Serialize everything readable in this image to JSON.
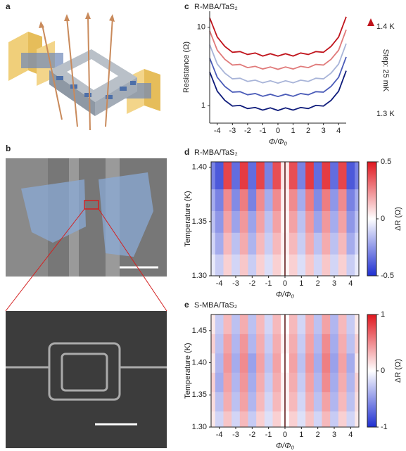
{
  "figure": {
    "panel_a": "a",
    "panel_b": "b"
  },
  "chart_data": [
    {
      "type": "line",
      "panel": "c",
      "title": "R-MBA/TaS₂",
      "xlabel": "Φ/Φ₀",
      "ylabel": "Resistance (Ω)",
      "log_y": true,
      "xlim": [
        -4.5,
        4.5
      ],
      "ylim": [
        0.6,
        16
      ],
      "xticks": [
        -4,
        -3,
        -2,
        -1,
        0,
        1,
        2,
        3,
        4
      ],
      "yticks": [
        1,
        10
      ],
      "annotations": [
        "1.4 K",
        "Step: 25 mK",
        "1.3 K"
      ],
      "x": [
        -4.5,
        -4,
        -3.5,
        -3,
        -2.5,
        -2,
        -1.5,
        -1,
        -0.5,
        0,
        0.5,
        1,
        1.5,
        2,
        2.5,
        3,
        3.5,
        4,
        4.5
      ],
      "series": [
        {
          "color": "#0d1a7a",
          "values": [
            2.7,
            1.53,
            1.17,
            0.99,
            1.01,
            0.92,
            0.95,
            0.88,
            0.94,
            0.87,
            0.94,
            0.88,
            0.95,
            0.92,
            1.01,
            0.99,
            1.17,
            1.53,
            2.79
          ]
        },
        {
          "color": "#4a5bb8",
          "values": [
            4.05,
            2.3,
            1.76,
            1.49,
            1.51,
            1.38,
            1.43,
            1.32,
            1.4,
            1.31,
            1.4,
            1.32,
            1.43,
            1.38,
            1.51,
            1.49,
            1.76,
            2.3,
            4.19
          ]
        },
        {
          "color": "#a8b4d8",
          "values": [
            6.0,
            3.4,
            2.6,
            2.2,
            2.24,
            2.04,
            2.12,
            1.96,
            2.08,
            1.94,
            2.08,
            1.96,
            2.12,
            2.04,
            2.24,
            2.2,
            2.6,
            3.4,
            6.2
          ]
        },
        {
          "color": "#e07a7a",
          "values": [
            9.0,
            5.1,
            3.9,
            3.3,
            3.36,
            3.06,
            3.18,
            2.94,
            3.12,
            2.91,
            3.12,
            2.94,
            3.18,
            3.06,
            3.36,
            3.3,
            3.9,
            5.1,
            9.3
          ]
        },
        {
          "color": "#c0141c",
          "values": [
            13.2,
            7.5,
            5.7,
            4.8,
            4.9,
            4.5,
            4.7,
            4.3,
            4.6,
            4.3,
            4.6,
            4.3,
            4.7,
            4.5,
            4.9,
            4.8,
            5.7,
            7.5,
            13.6
          ]
        }
      ]
    },
    {
      "type": "heatmap",
      "panel": "d",
      "title": "R-MBA/TaS₂",
      "xlabel": "Φ/Φ₀",
      "ylabel": "Temperature (K)",
      "colorbar_label": "ΔR (Ω)",
      "xlim": [
        -4.5,
        4.5
      ],
      "ylim": [
        1.3,
        1.405
      ],
      "xticks": [
        -4,
        -3,
        -2,
        -1,
        0,
        1,
        2,
        3,
        4
      ],
      "yticks": [
        {
          "value": 1.3,
          "label": "1.30"
        },
        1.35,
        {
          "value": 1.4,
          "label": "1.40"
        }
      ],
      "clim": [
        -0.5,
        0.5
      ],
      "cticks": [
        -0.5,
        0,
        0.5
      ],
      "colorscale": [
        "#1f2fd1",
        "#ffffff",
        "#e0161e"
      ],
      "vline": 0,
      "x": [
        -4.5,
        -4,
        -3.5,
        -3,
        -2.5,
        -2,
        -1.5,
        -1,
        -0.5,
        0,
        0.5,
        1,
        1.5,
        2,
        2.5,
        3,
        3.5,
        4,
        4.5
      ],
      "y": [
        1.31,
        1.33,
        1.35,
        1.37,
        1.39
      ],
      "z": [
        [
          -0.05,
          -0.12,
          0.1,
          -0.1,
          0.12,
          -0.12,
          0.1,
          -0.08,
          0.1,
          0.02,
          0.1,
          -0.08,
          0.12,
          -0.1,
          0.12,
          -0.1,
          0.1,
          -0.12,
          -0.05
        ],
        [
          -0.1,
          -0.2,
          0.15,
          -0.15,
          0.18,
          -0.18,
          0.15,
          -0.12,
          0.15,
          0.03,
          0.15,
          -0.12,
          0.18,
          -0.15,
          0.18,
          -0.15,
          0.15,
          -0.2,
          -0.1
        ],
        [
          -0.15,
          -0.25,
          0.2,
          -0.22,
          0.22,
          -0.22,
          0.2,
          -0.15,
          0.2,
          0.02,
          0.2,
          -0.15,
          0.22,
          -0.22,
          0.22,
          -0.2,
          0.2,
          -0.25,
          -0.15
        ],
        [
          -0.2,
          -0.3,
          0.25,
          -0.28,
          0.28,
          -0.3,
          0.25,
          -0.2,
          0.25,
          0.03,
          0.25,
          -0.2,
          0.28,
          -0.28,
          0.28,
          -0.25,
          0.25,
          -0.3,
          -0.2
        ],
        [
          -0.3,
          -0.4,
          0.4,
          -0.35,
          0.42,
          -0.35,
          0.4,
          -0.3,
          0.38,
          0.05,
          0.38,
          -0.3,
          0.42,
          -0.35,
          0.42,
          -0.35,
          0.4,
          -0.4,
          -0.3
        ]
      ]
    },
    {
      "type": "heatmap",
      "panel": "e",
      "title": "S-MBA/TaS₂",
      "xlabel": "Φ/Φ₀",
      "ylabel": "Temperature (K)",
      "colorbar_label": "ΔR (Ω)",
      "xlim": [
        -4.5,
        4.5
      ],
      "ylim": [
        1.3,
        1.475
      ],
      "xticks": [
        -4,
        -3,
        -2,
        -1,
        0,
        1,
        2,
        3,
        4
      ],
      "yticks": [
        {
          "value": 1.3,
          "label": "1.30"
        },
        1.35,
        {
          "value": 1.4,
          "label": "1.40"
        },
        1.45
      ],
      "clim": [
        -1,
        1
      ],
      "cticks": [
        -1,
        0,
        1
      ],
      "colorscale": [
        "#1f2fd1",
        "#ffffff",
        "#e0161e"
      ],
      "vline": 0,
      "x": [
        -4.5,
        -4,
        -3.5,
        -3,
        -2.5,
        -2,
        -1.5,
        -1,
        -0.5,
        0,
        0.5,
        1,
        1.5,
        2,
        2.5,
        3,
        3.5,
        4,
        4.5
      ],
      "y": [
        1.31,
        1.34,
        1.37,
        1.4,
        1.43,
        1.46
      ],
      "z": [
        [
          0.1,
          -0.2,
          0.25,
          -0.2,
          0.3,
          -0.25,
          0.2,
          -0.15,
          0.2,
          0,
          0.2,
          -0.15,
          0.25,
          -0.2,
          0.3,
          -0.25,
          0.2,
          -0.2,
          0.1
        ],
        [
          0.15,
          -0.3,
          0.35,
          -0.3,
          0.4,
          -0.35,
          0.3,
          -0.2,
          0.3,
          0.05,
          0.3,
          -0.2,
          0.35,
          -0.3,
          0.4,
          -0.35,
          0.3,
          -0.3,
          0.15
        ],
        [
          0.2,
          -0.4,
          0.4,
          -0.35,
          0.45,
          -0.4,
          0.35,
          -0.25,
          0.35,
          0.05,
          0.35,
          -0.25,
          0.4,
          -0.35,
          0.5,
          -0.4,
          0.35,
          -0.35,
          0.2
        ],
        [
          0.1,
          -0.35,
          0.45,
          -0.4,
          0.5,
          -0.45,
          0.4,
          -0.3,
          0.4,
          0,
          0.4,
          -0.3,
          0.45,
          -0.4,
          0.55,
          -0.45,
          0.4,
          -0.4,
          0.1
        ],
        [
          0.2,
          -0.3,
          0.4,
          -0.35,
          0.45,
          -0.35,
          0.35,
          -0.25,
          0.35,
          0.05,
          0.35,
          -0.25,
          0.4,
          -0.35,
          0.5,
          -0.4,
          0.35,
          -0.3,
          0.2
        ],
        [
          0.1,
          -0.25,
          0.3,
          -0.3,
          0.35,
          -0.3,
          0.3,
          -0.2,
          0.3,
          0,
          0.3,
          -0.2,
          0.35,
          -0.3,
          0.4,
          -0.35,
          0.3,
          -0.25,
          0.1
        ]
      ]
    }
  ]
}
